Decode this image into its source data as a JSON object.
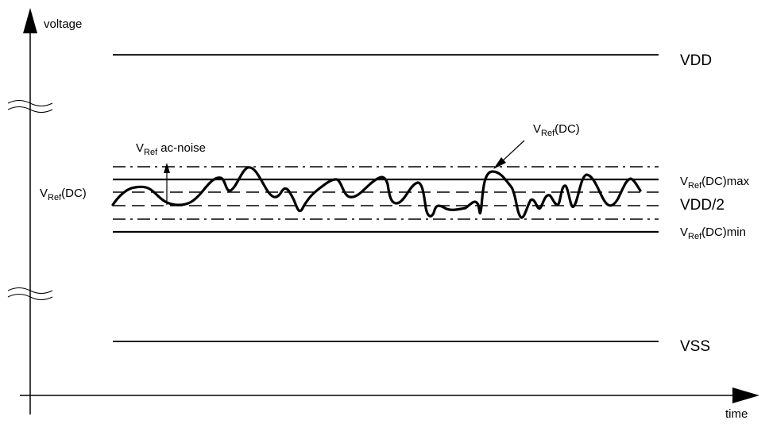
{
  "axes": {
    "y_label": "voltage",
    "x_label": "time"
  },
  "levels": {
    "vdd": "VDD",
    "vss": "VSS",
    "vdd_half": "VDD/2"
  },
  "labels": {
    "vref_dc_left": {
      "main": "V",
      "sub": "Ref",
      "rest": "(DC)"
    },
    "vref_dc_top": {
      "main": "V",
      "sub": "Ref",
      "rest": "(DC)"
    },
    "vref_ac_noise": {
      "main": "V",
      "sub": "Ref",
      "rest": " ac-noise"
    },
    "vref_dc_max": {
      "main": "V",
      "sub": "Ref",
      "rest": "(DC)max"
    },
    "vref_dc_min": {
      "main": "V",
      "sub": "Ref",
      "rest": "(DC)min"
    }
  },
  "colors": {
    "ink": "#000000",
    "background": "#ffffff"
  }
}
